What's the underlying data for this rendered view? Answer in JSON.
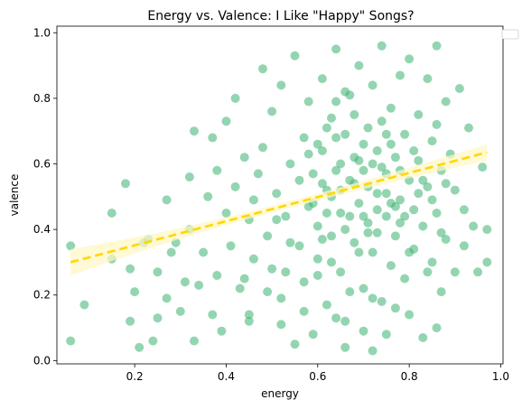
{
  "chart_data": {
    "type": "scatter",
    "title": "Energy vs. Valence: I Like \"Happy\" Songs?",
    "xlabel": "energy",
    "ylabel": "valence",
    "xlim": [
      0.03,
      1.005
    ],
    "ylim": [
      -0.01,
      1.02
    ],
    "x_ticks": [
      "0.2",
      "0.4",
      "0.6",
      "0.8",
      "1.0"
    ],
    "y_ticks": [
      "0.0",
      "0.2",
      "0.4",
      "0.6",
      "0.8",
      "1.0"
    ],
    "x_tick_values": [
      0.2,
      0.4,
      0.6,
      0.8,
      1.0
    ],
    "y_tick_values": [
      0.0,
      0.2,
      0.4,
      0.6,
      0.8,
      1.0
    ],
    "grid": false,
    "legend": "top-right (empty)",
    "colors": {
      "points": "#3cb371",
      "regression_line": "#ffd700",
      "confidence_band": "#fff6c2"
    },
    "regression": {
      "x": [
        0.06,
        0.97
      ],
      "y": [
        0.3,
        0.635
      ],
      "ci_half_width_at_ends": [
        0.04,
        0.025
      ],
      "ci_half_width_at_mean": 0.01,
      "line_style": "dashed"
    },
    "points": [
      [
        0.06,
        0.35
      ],
      [
        0.06,
        0.06
      ],
      [
        0.09,
        0.17
      ],
      [
        0.15,
        0.45
      ],
      [
        0.15,
        0.31
      ],
      [
        0.18,
        0.54
      ],
      [
        0.19,
        0.12
      ],
      [
        0.19,
        0.28
      ],
      [
        0.2,
        0.21
      ],
      [
        0.21,
        0.04
      ],
      [
        0.22,
        0.36
      ],
      [
        0.23,
        0.37
      ],
      [
        0.24,
        0.06
      ],
      [
        0.25,
        0.13
      ],
      [
        0.25,
        0.27
      ],
      [
        0.27,
        0.49
      ],
      [
        0.27,
        0.19
      ],
      [
        0.28,
        0.33
      ],
      [
        0.29,
        0.36
      ],
      [
        0.3,
        0.15
      ],
      [
        0.31,
        0.24
      ],
      [
        0.32,
        0.56
      ],
      [
        0.32,
        0.4
      ],
      [
        0.33,
        0.7
      ],
      [
        0.33,
        0.06
      ],
      [
        0.34,
        0.23
      ],
      [
        0.35,
        0.33
      ],
      [
        0.36,
        0.5
      ],
      [
        0.37,
        0.68
      ],
      [
        0.37,
        0.14
      ],
      [
        0.38,
        0.58
      ],
      [
        0.38,
        0.26
      ],
      [
        0.39,
        0.09
      ],
      [
        0.4,
        0.73
      ],
      [
        0.4,
        0.45
      ],
      [
        0.41,
        0.35
      ],
      [
        0.42,
        0.8
      ],
      [
        0.42,
        0.53
      ],
      [
        0.43,
        0.22
      ],
      [
        0.44,
        0.62
      ],
      [
        0.45,
        0.43
      ],
      [
        0.45,
        0.14
      ],
      [
        0.46,
        0.31
      ],
      [
        0.47,
        0.57
      ],
      [
        0.48,
        0.65
      ],
      [
        0.48,
        0.89
      ],
      [
        0.49,
        0.38
      ],
      [
        0.5,
        0.28
      ],
      [
        0.5,
        0.76
      ],
      [
        0.51,
        0.51
      ],
      [
        0.52,
        0.19
      ],
      [
        0.52,
        0.84
      ],
      [
        0.53,
        0.44
      ],
      [
        0.54,
        0.6
      ],
      [
        0.55,
        0.93
      ],
      [
        0.55,
        0.05
      ],
      [
        0.56,
        0.35
      ],
      [
        0.57,
        0.68
      ],
      [
        0.57,
        0.24
      ],
      [
        0.58,
        0.47
      ],
      [
        0.58,
        0.79
      ],
      [
        0.59,
        0.57
      ],
      [
        0.6,
        0.31
      ],
      [
        0.6,
        0.41
      ],
      [
        0.61,
        0.64
      ],
      [
        0.61,
        0.86
      ],
      [
        0.62,
        0.17
      ],
      [
        0.62,
        0.52
      ],
      [
        0.63,
        0.74
      ],
      [
        0.63,
        0.38
      ],
      [
        0.64,
        0.58
      ],
      [
        0.64,
        0.95
      ],
      [
        0.65,
        0.27
      ],
      [
        0.65,
        0.45
      ],
      [
        0.66,
        0.69
      ],
      [
        0.66,
        0.12
      ],
      [
        0.67,
        0.55
      ],
      [
        0.67,
        0.81
      ],
      [
        0.68,
        0.36
      ],
      [
        0.68,
        0.62
      ],
      [
        0.69,
        0.48
      ],
      [
        0.69,
        0.9
      ],
      [
        0.7,
        0.22
      ],
      [
        0.7,
        0.58
      ],
      [
        0.71,
        0.71
      ],
      [
        0.71,
        0.42
      ],
      [
        0.72,
        0.33
      ],
      [
        0.72,
        0.84
      ],
      [
        0.73,
        0.51
      ],
      [
        0.73,
        0.64
      ],
      [
        0.74,
        0.18
      ],
      [
        0.74,
        0.96
      ],
      [
        0.75,
        0.44
      ],
      [
        0.75,
        0.57
      ],
      [
        0.76,
        0.29
      ],
      [
        0.76,
        0.77
      ],
      [
        0.77,
        0.62
      ],
      [
        0.77,
        0.38
      ],
      [
        0.78,
        0.87
      ],
      [
        0.78,
        0.49
      ],
      [
        0.79,
        0.25
      ],
      [
        0.79,
        0.69
      ],
      [
        0.8,
        0.55
      ],
      [
        0.8,
        0.92
      ],
      [
        0.81,
        0.34
      ],
      [
        0.81,
        0.46
      ],
      [
        0.82,
        0.75
      ],
      [
        0.82,
        0.61
      ],
      [
        0.83,
        0.07
      ],
      [
        0.83,
        0.41
      ],
      [
        0.84,
        0.86
      ],
      [
        0.84,
        0.53
      ],
      [
        0.85,
        0.3
      ],
      [
        0.85,
        0.67
      ],
      [
        0.86,
        0.96
      ],
      [
        0.86,
        0.45
      ],
      [
        0.87,
        0.58
      ],
      [
        0.87,
        0.21
      ],
      [
        0.88,
        0.79
      ],
      [
        0.88,
        0.37
      ],
      [
        0.89,
        0.63
      ],
      [
        0.9,
        0.52
      ],
      [
        0.9,
        0.27
      ],
      [
        0.91,
        0.83
      ],
      [
        0.92,
        0.46
      ],
      [
        0.92,
        0.35
      ],
      [
        0.93,
        0.71
      ],
      [
        0.94,
        0.41
      ],
      [
        0.95,
        0.27
      ],
      [
        0.96,
        0.59
      ],
      [
        0.97,
        0.3
      ],
      [
        0.97,
        0.4
      ],
      [
        0.44,
        0.25
      ],
      [
        0.46,
        0.49
      ],
      [
        0.49,
        0.21
      ],
      [
        0.51,
        0.43
      ],
      [
        0.53,
        0.27
      ],
      [
        0.54,
        0.36
      ],
      [
        0.56,
        0.55
      ],
      [
        0.57,
        0.15
      ],
      [
        0.58,
        0.63
      ],
      [
        0.6,
        0.26
      ],
      [
        0.61,
        0.37
      ],
      [
        0.62,
        0.45
      ],
      [
        0.63,
        0.3
      ],
      [
        0.64,
        0.68
      ],
      [
        0.65,
        0.52
      ],
      [
        0.66,
        0.4
      ],
      [
        0.67,
        0.21
      ],
      [
        0.68,
        0.75
      ],
      [
        0.69,
        0.33
      ],
      [
        0.7,
        0.44
      ],
      [
        0.71,
        0.53
      ],
      [
        0.72,
        0.19
      ],
      [
        0.73,
        0.39
      ],
      [
        0.74,
        0.59
      ],
      [
        0.75,
        0.69
      ],
      [
        0.76,
        0.48
      ],
      [
        0.77,
        0.16
      ],
      [
        0.78,
        0.58
      ],
      [
        0.79,
        0.44
      ],
      [
        0.8,
        0.33
      ],
      [
        0.81,
        0.64
      ],
      [
        0.82,
        0.51
      ],
      [
        0.83,
        0.55
      ],
      [
        0.84,
        0.27
      ],
      [
        0.85,
        0.49
      ],
      [
        0.86,
        0.72
      ],
      [
        0.87,
        0.39
      ],
      [
        0.88,
        0.54
      ],
      [
        0.59,
        0.48
      ],
      [
        0.61,
        0.54
      ],
      [
        0.63,
        0.5
      ],
      [
        0.65,
        0.6
      ],
      [
        0.67,
        0.44
      ],
      [
        0.69,
        0.61
      ],
      [
        0.71,
        0.39
      ],
      [
        0.73,
        0.46
      ],
      [
        0.75,
        0.51
      ],
      [
        0.77,
        0.47
      ],
      [
        0.6,
        0.66
      ],
      [
        0.62,
        0.71
      ],
      [
        0.64,
        0.79
      ],
      [
        0.66,
        0.82
      ],
      [
        0.68,
        0.54
      ],
      [
        0.7,
        0.66
      ],
      [
        0.72,
        0.6
      ],
      [
        0.74,
        0.73
      ],
      [
        0.76,
        0.66
      ],
      [
        0.78,
        0.42
      ],
      [
        0.66,
        0.04
      ],
      [
        0.72,
        0.03
      ],
      [
        0.45,
        0.12
      ],
      [
        0.52,
        0.11
      ],
      [
        0.59,
        0.08
      ],
      [
        0.64,
        0.13
      ],
      [
        0.7,
        0.09
      ],
      [
        0.75,
        0.08
      ],
      [
        0.8,
        0.14
      ],
      [
        0.86,
        0.1
      ]
    ]
  }
}
